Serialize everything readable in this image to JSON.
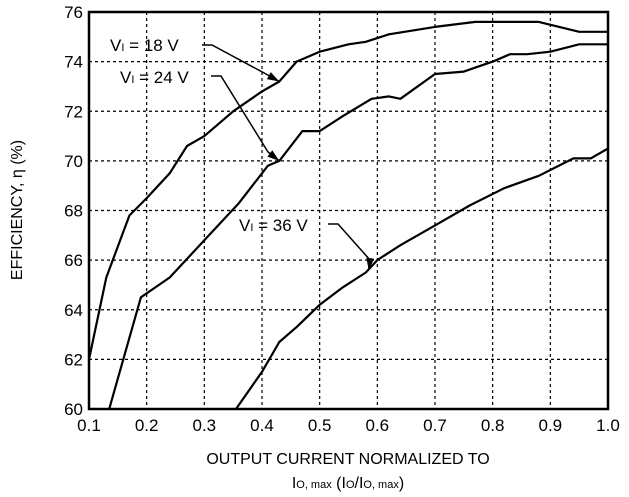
{
  "chart_data": {
    "type": "line",
    "xlabel": "OUTPUT CURRENT NORMALIZED TO",
    "xlabel_line2": {
      "p1": "I",
      "p2": "O, max",
      "p3": " (I",
      "p4": "O",
      "p5": "/I",
      "p6": "O, max",
      "p7": ")"
    },
    "ylabel": "EFFICIENCY, η (%)",
    "xlim": [
      0.1,
      1.0
    ],
    "ylim": [
      60,
      76
    ],
    "grid": true,
    "x_ticks": [
      "0.1",
      "0.2",
      "0.3",
      "0.4",
      "0.5",
      "0.6",
      "0.7",
      "0.8",
      "0.9",
      "1.0"
    ],
    "y_ticks": [
      "60",
      "62",
      "64",
      "66",
      "68",
      "70",
      "72",
      "74",
      "76"
    ],
    "series": [
      {
        "name": "VI = 18 V",
        "label_prefix": "V",
        "label_sub": "I",
        "label_rest": " = 18 V",
        "x": [
          0.1,
          0.13,
          0.17,
          0.2,
          0.24,
          0.27,
          0.3,
          0.35,
          0.4,
          0.43,
          0.46,
          0.5,
          0.55,
          0.58,
          0.62,
          0.7,
          0.77,
          0.82,
          0.86,
          0.88,
          0.95,
          1.0
        ],
        "y": [
          62.0,
          65.3,
          67.8,
          68.5,
          69.5,
          70.6,
          71.0,
          72.0,
          72.8,
          73.2,
          74.0,
          74.4,
          74.7,
          74.8,
          75.1,
          75.4,
          75.6,
          75.6,
          75.6,
          75.6,
          75.2,
          75.2
        ]
      },
      {
        "name": "VI = 24 V",
        "label_prefix": "V",
        "label_sub": "I",
        "label_rest": " = 24 V",
        "x": [
          0.135,
          0.19,
          0.24,
          0.3,
          0.36,
          0.41,
          0.43,
          0.47,
          0.5,
          0.54,
          0.59,
          0.62,
          0.64,
          0.7,
          0.75,
          0.8,
          0.83,
          0.86,
          0.9,
          0.95,
          1.0
        ],
        "y": [
          60.0,
          64.5,
          65.3,
          66.8,
          68.3,
          69.8,
          70.0,
          71.2,
          71.2,
          71.8,
          72.5,
          72.6,
          72.5,
          73.5,
          73.6,
          74.0,
          74.3,
          74.3,
          74.4,
          74.7,
          74.7
        ]
      },
      {
        "name": "VI = 36 V",
        "label_prefix": "V",
        "label_sub": "I",
        "label_rest": " = 36 V",
        "x": [
          0.355,
          0.4,
          0.43,
          0.46,
          0.5,
          0.54,
          0.58,
          0.6,
          0.64,
          0.7,
          0.76,
          0.82,
          0.88,
          0.94,
          0.97,
          1.0
        ],
        "y": [
          60.0,
          61.5,
          62.7,
          63.3,
          64.2,
          64.9,
          65.5,
          66.0,
          66.6,
          67.4,
          68.2,
          68.9,
          69.4,
          70.1,
          70.1,
          70.5
        ]
      }
    ]
  }
}
